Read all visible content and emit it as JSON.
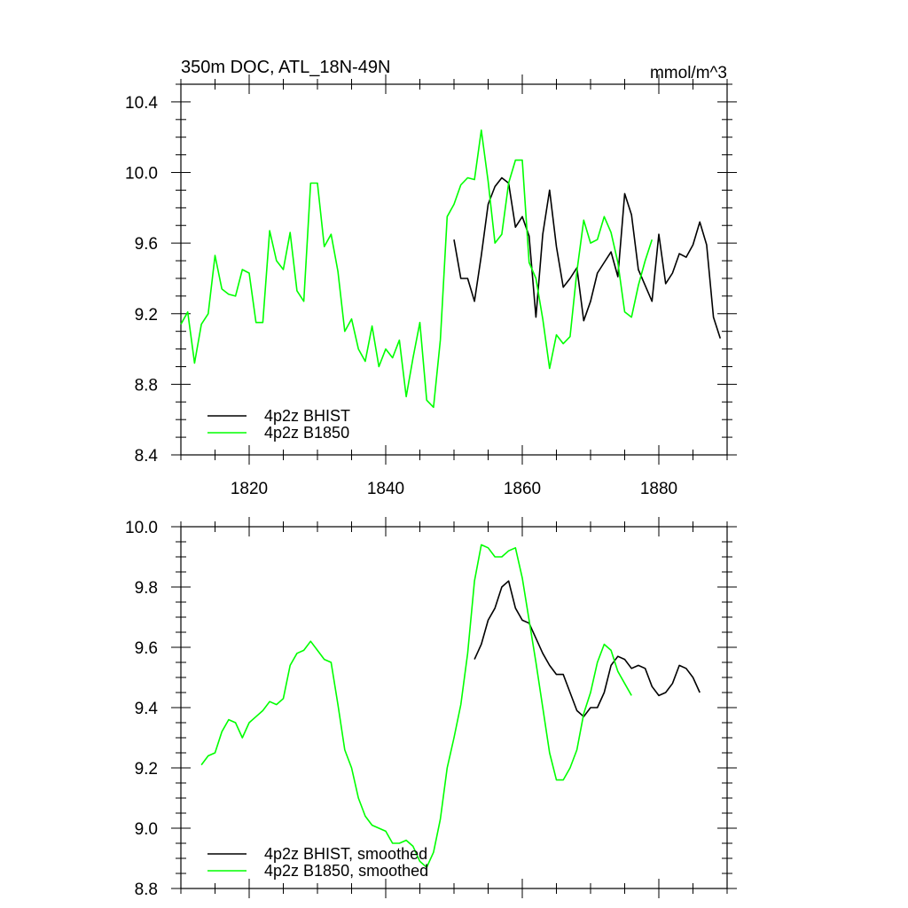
{
  "chart_data": [
    {
      "type": "line",
      "title": "350m DOC, ATL_18N-49N",
      "units": "mmol/m^3",
      "xlim": [
        1810,
        1890
      ],
      "ylim": [
        8.4,
        10.5
      ],
      "xticks": [
        1820,
        1840,
        1860,
        1880
      ],
      "yticks": [
        8.4,
        8.8,
        9.2,
        9.6,
        10.0,
        10.4
      ],
      "ytick_labels": [
        "8.4",
        "8.8",
        "9.2",
        "9.6",
        "10.0",
        "10.4"
      ],
      "legend_position": "bottom-left",
      "series": [
        {
          "name": "4p2z BHIST",
          "color": "#000000",
          "x": [
            1850,
            1851,
            1852,
            1853,
            1854,
            1855,
            1856,
            1857,
            1858,
            1859,
            1860,
            1861,
            1862,
            1863,
            1864,
            1865,
            1866,
            1867,
            1868,
            1869,
            1870,
            1871,
            1872,
            1873,
            1874,
            1875,
            1876,
            1877,
            1878,
            1879,
            1880,
            1881,
            1882,
            1883,
            1884,
            1885,
            1886,
            1887,
            1888,
            1889
          ],
          "values": [
            9.62,
            9.4,
            9.4,
            9.27,
            9.53,
            9.82,
            9.92,
            9.97,
            9.94,
            9.69,
            9.75,
            9.64,
            9.18,
            9.65,
            9.9,
            9.58,
            9.35,
            9.4,
            9.46,
            9.16,
            9.27,
            9.43,
            9.49,
            9.55,
            9.41,
            9.88,
            9.76,
            9.45,
            9.36,
            9.27,
            9.65,
            9.37,
            9.43,
            9.54,
            9.52,
            9.59,
            9.72,
            9.59,
            9.18,
            9.06
          ]
        },
        {
          "name": "4p2z B1850",
          "color": "#00ff00",
          "x": [
            1810,
            1811,
            1812,
            1813,
            1814,
            1815,
            1816,
            1817,
            1818,
            1819,
            1820,
            1821,
            1822,
            1823,
            1824,
            1825,
            1826,
            1827,
            1828,
            1829,
            1830,
            1831,
            1832,
            1833,
            1834,
            1835,
            1836,
            1837,
            1838,
            1839,
            1840,
            1841,
            1842,
            1843,
            1844,
            1845,
            1846,
            1847,
            1848,
            1849,
            1850,
            1851,
            1852,
            1853,
            1854,
            1855,
            1856,
            1857,
            1858,
            1859,
            1860,
            1861,
            1862,
            1863,
            1864,
            1865,
            1866,
            1867,
            1868,
            1869,
            1870,
            1871,
            1872,
            1873,
            1874,
            1875,
            1876,
            1877,
            1878,
            1879
          ],
          "values": [
            9.14,
            9.21,
            8.92,
            9.14,
            9.2,
            9.53,
            9.34,
            9.31,
            9.3,
            9.45,
            9.43,
            9.15,
            9.15,
            9.67,
            9.5,
            9.45,
            9.66,
            9.33,
            9.27,
            9.94,
            9.94,
            9.58,
            9.65,
            9.44,
            9.1,
            9.17,
            9.0,
            8.93,
            9.13,
            8.9,
            9.0,
            8.95,
            9.05,
            8.73,
            8.95,
            9.15,
            8.71,
            8.67,
            9.05,
            9.75,
            9.82,
            9.93,
            9.97,
            9.96,
            10.24,
            9.95,
            9.6,
            9.65,
            9.94,
            10.07,
            10.07,
            9.49,
            9.4,
            9.17,
            8.89,
            9.08,
            9.03,
            9.07,
            9.44,
            9.73,
            9.6,
            9.62,
            9.75,
            9.66,
            9.49,
            9.21,
            9.18,
            9.36,
            9.5,
            9.62
          ]
        }
      ]
    },
    {
      "type": "line",
      "title": "",
      "xlim": [
        1810,
        1890
      ],
      "ylim": [
        8.8,
        10.0
      ],
      "xticks": [
        1820,
        1840,
        1860,
        1880
      ],
      "yticks": [
        8.8,
        9.0,
        9.2,
        9.4,
        9.6,
        9.8,
        10.0
      ],
      "ytick_labels": [
        "8.8",
        "9.0",
        "9.2",
        "9.4",
        "9.6",
        "9.8",
        "10.0"
      ],
      "legend_position": "bottom-left",
      "series": [
        {
          "name": "4p2z BHIST, smoothed",
          "color": "#000000",
          "x": [
            1853,
            1854,
            1855,
            1856,
            1857,
            1858,
            1859,
            1860,
            1861,
            1862,
            1863,
            1864,
            1865,
            1866,
            1867,
            1868,
            1869,
            1870,
            1871,
            1872,
            1873,
            1874,
            1875,
            1876,
            1877,
            1878,
            1879,
            1880,
            1881,
            1882,
            1883,
            1884,
            1885,
            1886
          ],
          "values": [
            9.56,
            9.61,
            9.69,
            9.73,
            9.8,
            9.82,
            9.73,
            9.69,
            9.68,
            9.63,
            9.58,
            9.54,
            9.51,
            9.51,
            9.45,
            9.39,
            9.37,
            9.4,
            9.4,
            9.45,
            9.54,
            9.57,
            9.56,
            9.53,
            9.54,
            9.53,
            9.47,
            9.44,
            9.45,
            9.48,
            9.54,
            9.53,
            9.5,
            9.45
          ]
        },
        {
          "name": "4p2z B1850, smoothed",
          "color": "#00ff00",
          "x": [
            1813,
            1814,
            1815,
            1816,
            1817,
            1818,
            1819,
            1820,
            1821,
            1822,
            1823,
            1824,
            1825,
            1826,
            1827,
            1828,
            1829,
            1830,
            1831,
            1832,
            1833,
            1834,
            1835,
            1836,
            1837,
            1838,
            1839,
            1840,
            1841,
            1842,
            1843,
            1844,
            1845,
            1846,
            1847,
            1848,
            1849,
            1850,
            1851,
            1852,
            1853,
            1854,
            1855,
            1856,
            1857,
            1858,
            1859,
            1860,
            1861,
            1862,
            1863,
            1864,
            1865,
            1866,
            1867,
            1868,
            1869,
            1870,
            1871,
            1872,
            1873,
            1874,
            1875,
            1876
          ],
          "values": [
            9.21,
            9.24,
            9.25,
            9.32,
            9.36,
            9.35,
            9.3,
            9.35,
            9.37,
            9.39,
            9.42,
            9.41,
            9.43,
            9.54,
            9.58,
            9.59,
            9.62,
            9.59,
            9.56,
            9.55,
            9.41,
            9.26,
            9.2,
            9.1,
            9.04,
            9.01,
            9.0,
            8.99,
            8.95,
            8.95,
            8.96,
            8.94,
            8.89,
            8.87,
            8.92,
            9.03,
            9.2,
            9.3,
            9.41,
            9.58,
            9.82,
            9.94,
            9.93,
            9.9,
            9.9,
            9.92,
            9.93,
            9.83,
            9.69,
            9.55,
            9.4,
            9.25,
            9.16,
            9.16,
            9.2,
            9.26,
            9.38,
            9.45,
            9.55,
            9.61,
            9.59,
            9.52,
            9.48,
            9.44
          ]
        }
      ]
    }
  ]
}
